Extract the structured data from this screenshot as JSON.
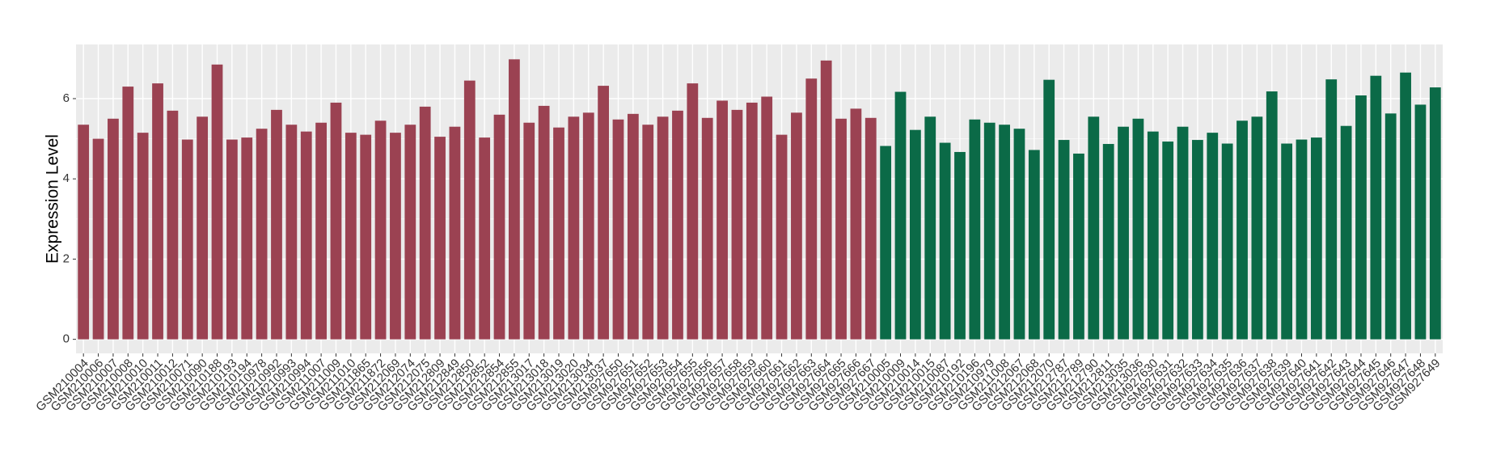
{
  "chart_data": {
    "type": "bar",
    "y_label": "Expression Level",
    "categories": [
      "GSM210004",
      "GSM210006",
      "GSM210007",
      "GSM210008",
      "GSM210010",
      "GSM210011",
      "GSM210012",
      "GSM210071",
      "GSM210090",
      "GSM210188",
      "GSM210193",
      "GSM210194",
      "GSM210978",
      "GSM210992",
      "GSM210993",
      "GSM210994",
      "GSM211007",
      "GSM211009",
      "GSM211010",
      "GSM211865",
      "GSM211872",
      "GSM212069",
      "GSM212074",
      "GSM212075",
      "GSM212809",
      "GSM212849",
      "GSM212850",
      "GSM212852",
      "GSM212854",
      "GSM212855",
      "GSM213017",
      "GSM213018",
      "GSM213019",
      "GSM213020",
      "GSM213034",
      "GSM213037",
      "GSM927650",
      "GSM927651",
      "GSM927652",
      "GSM927653",
      "GSM927654",
      "GSM927655",
      "GSM927656",
      "GSM927657",
      "GSM927658",
      "GSM927659",
      "GSM927660",
      "GSM927661",
      "GSM927662",
      "GSM927663",
      "GSM927664",
      "GSM927665",
      "GSM927666",
      "GSM927667",
      "GSM210005",
      "GSM210009",
      "GSM210014",
      "GSM210015",
      "GSM210087",
      "GSM210192",
      "GSM210196",
      "GSM210979",
      "GSM211008",
      "GSM212067",
      "GSM212068",
      "GSM212070",
      "GSM212787",
      "GSM212789",
      "GSM212790",
      "GSM212811",
      "GSM213035",
      "GSM213036",
      "GSM927630",
      "GSM927631",
      "GSM927632",
      "GSM927633",
      "GSM927634",
      "GSM927635",
      "GSM927636",
      "GSM927637",
      "GSM927638",
      "GSM927639",
      "GSM927640",
      "GSM927641",
      "GSM927642",
      "GSM927643",
      "GSM927644",
      "GSM927645",
      "GSM927646",
      "GSM927647",
      "GSM927648",
      "GSM927649"
    ],
    "values": [
      5.35,
      5.0,
      5.5,
      6.3,
      5.15,
      6.38,
      5.7,
      4.98,
      5.55,
      6.85,
      4.98,
      5.03,
      5.25,
      5.72,
      5.35,
      5.18,
      5.4,
      5.9,
      5.15,
      5.1,
      5.45,
      5.15,
      5.35,
      5.8,
      5.05,
      5.3,
      6.45,
      5.03,
      5.6,
      6.98,
      5.4,
      5.82,
      5.28,
      5.55,
      5.65,
      6.32,
      5.48,
      5.62,
      5.35,
      5.55,
      5.7,
      6.38,
      5.52,
      5.95,
      5.72,
      5.9,
      6.05,
      5.1,
      5.65,
      6.5,
      6.95,
      5.5,
      5.75,
      5.52,
      4.82,
      6.17,
      5.22,
      5.55,
      4.9,
      4.67,
      5.48,
      5.4,
      5.35,
      5.25,
      4.72,
      6.47,
      4.97,
      4.63,
      5.55,
      4.87,
      5.3,
      5.5,
      5.18,
      4.93,
      5.3,
      4.97,
      5.15,
      4.88,
      5.45,
      5.55,
      6.18,
      4.88,
      4.98,
      5.03,
      6.48,
      5.32,
      6.08,
      6.57,
      5.63,
      6.65,
      5.85,
      6.28
    ],
    "colors": [
      "#9b4252",
      "#9b4252",
      "#9b4252",
      "#9b4252",
      "#9b4252",
      "#9b4252",
      "#9b4252",
      "#9b4252",
      "#9b4252",
      "#9b4252",
      "#9b4252",
      "#9b4252",
      "#9b4252",
      "#9b4252",
      "#9b4252",
      "#9b4252",
      "#9b4252",
      "#9b4252",
      "#9b4252",
      "#9b4252",
      "#9b4252",
      "#9b4252",
      "#9b4252",
      "#9b4252",
      "#9b4252",
      "#9b4252",
      "#9b4252",
      "#9b4252",
      "#9b4252",
      "#9b4252",
      "#9b4252",
      "#9b4252",
      "#9b4252",
      "#9b4252",
      "#9b4252",
      "#9b4252",
      "#9b4252",
      "#9b4252",
      "#9b4252",
      "#9b4252",
      "#9b4252",
      "#9b4252",
      "#9b4252",
      "#9b4252",
      "#9b4252",
      "#9b4252",
      "#9b4252",
      "#9b4252",
      "#9b4252",
      "#9b4252",
      "#9b4252",
      "#9b4252",
      "#9b4252",
      "#9b4252",
      "#0b6a47",
      "#0b6a47",
      "#0b6a47",
      "#0b6a47",
      "#0b6a47",
      "#0b6a47",
      "#0b6a47",
      "#0b6a47",
      "#0b6a47",
      "#0b6a47",
      "#0b6a47",
      "#0b6a47",
      "#0b6a47",
      "#0b6a47",
      "#0b6a47",
      "#0b6a47",
      "#0b6a47",
      "#0b6a47",
      "#0b6a47",
      "#0b6a47",
      "#0b6a47",
      "#0b6a47",
      "#0b6a47",
      "#0b6a47",
      "#0b6a47",
      "#0b6a47",
      "#0b6a47",
      "#0b6a47",
      "#0b6a47",
      "#0b6a47",
      "#0b6a47",
      "#0b6a47",
      "#0b6a47",
      "#0b6a47",
      "#0b6a47",
      "#0b6a47",
      "#0b6a47",
      "#0b6a47"
    ],
    "ylim": [
      -0.35,
      7.35
    ],
    "yticks": [
      0,
      2,
      4,
      6
    ],
    "grid": true
  }
}
